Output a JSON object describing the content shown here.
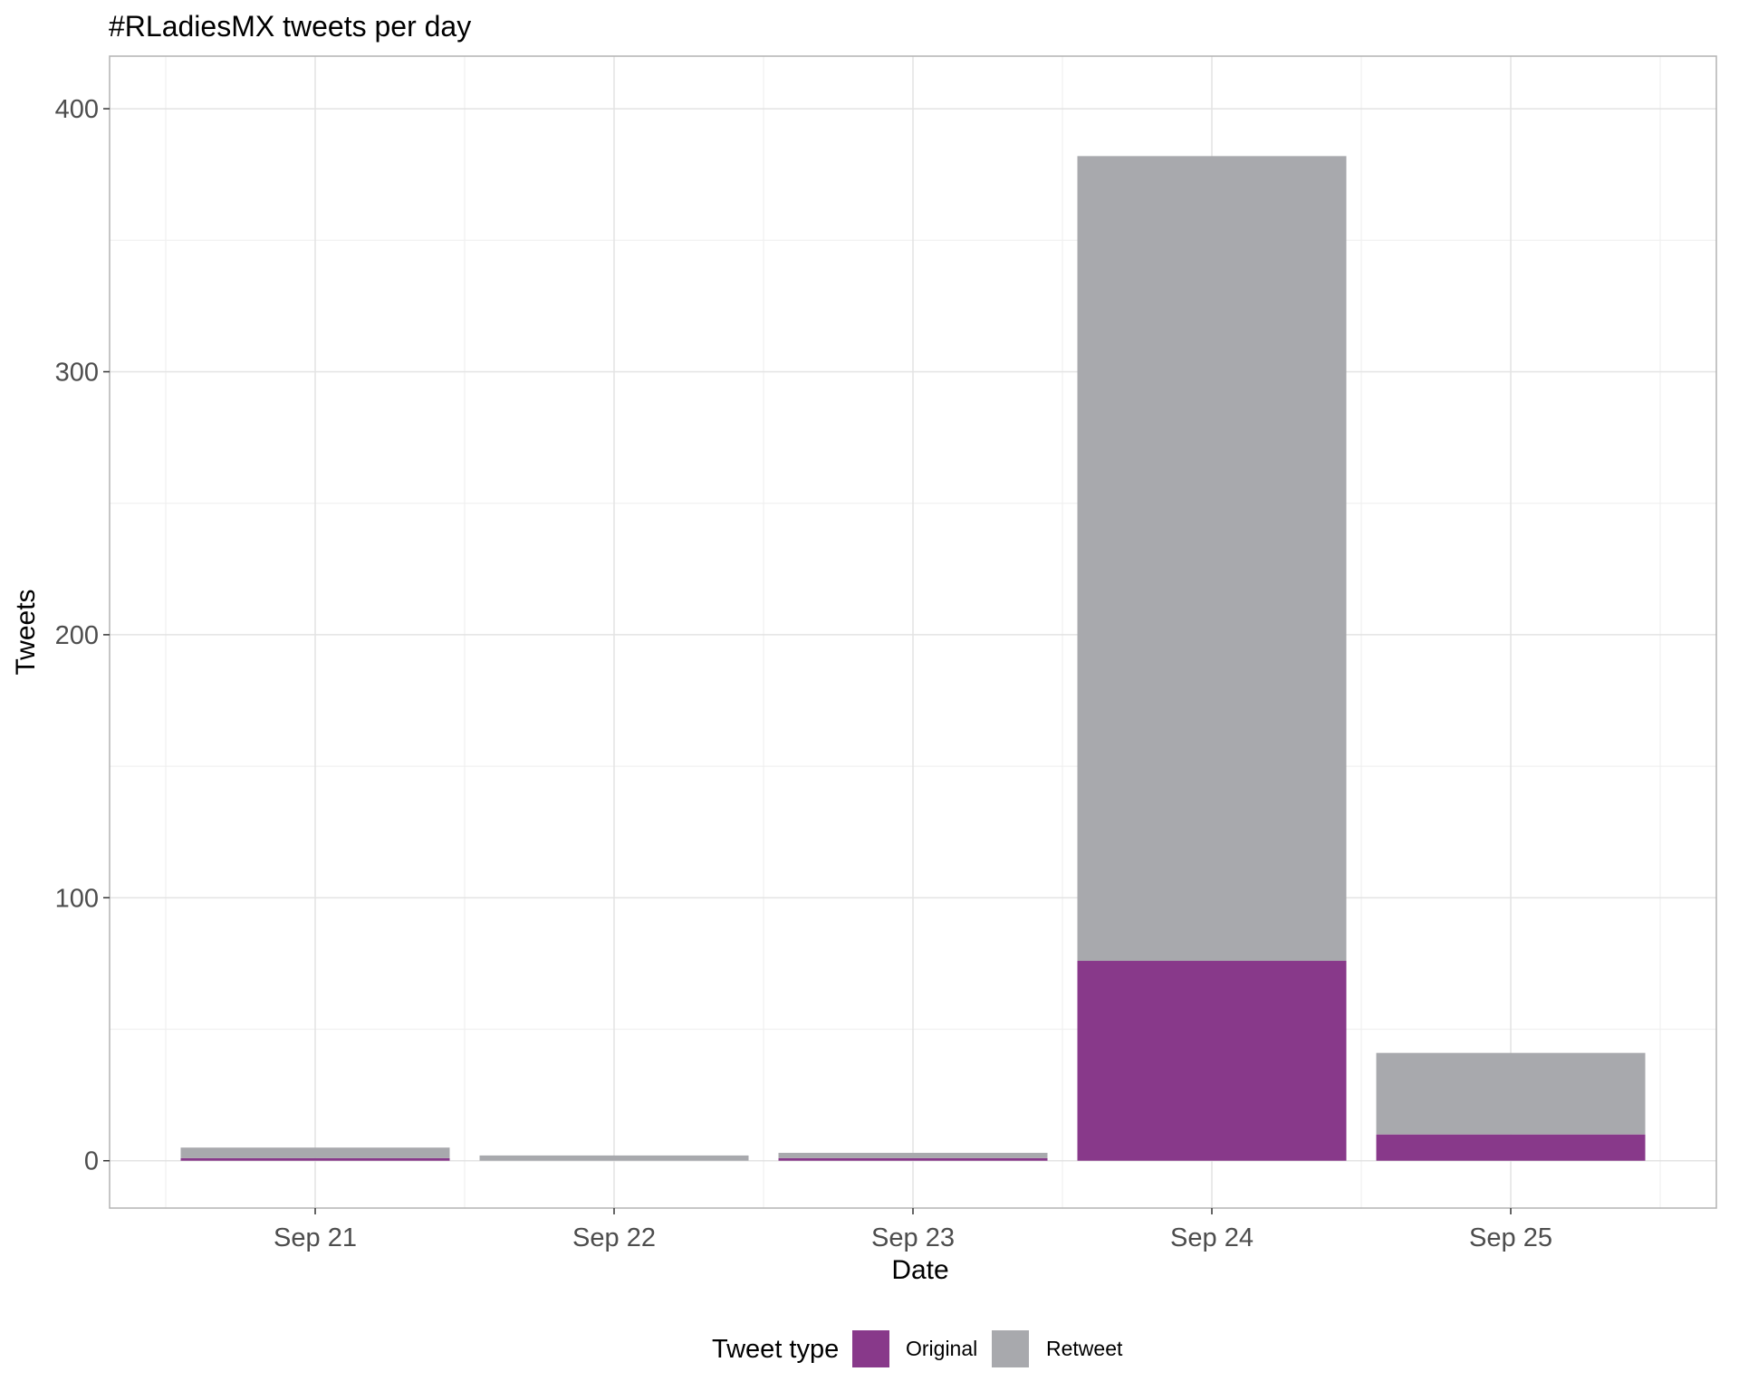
{
  "chart_data": {
    "type": "bar",
    "stacked": true,
    "title": "#RLadiesMX tweets per day",
    "xlabel": "Date",
    "ylabel": "Tweets",
    "categories": [
      "Sep 21",
      "Sep 22",
      "Sep 23",
      "Sep 24",
      "Sep 25"
    ],
    "series": [
      {
        "name": "Original",
        "color": "#88398a",
        "values": [
          1,
          0,
          1,
          76,
          10
        ]
      },
      {
        "name": "Retweet",
        "color": "#a8a9ad",
        "values": [
          4,
          2,
          2,
          306,
          31
        ]
      }
    ],
    "ylim": [
      -18,
      420
    ],
    "yticks": [
      0,
      100,
      200,
      300,
      400
    ],
    "grid": true,
    "legend": {
      "title": "Tweet type",
      "position": "bottom"
    }
  }
}
